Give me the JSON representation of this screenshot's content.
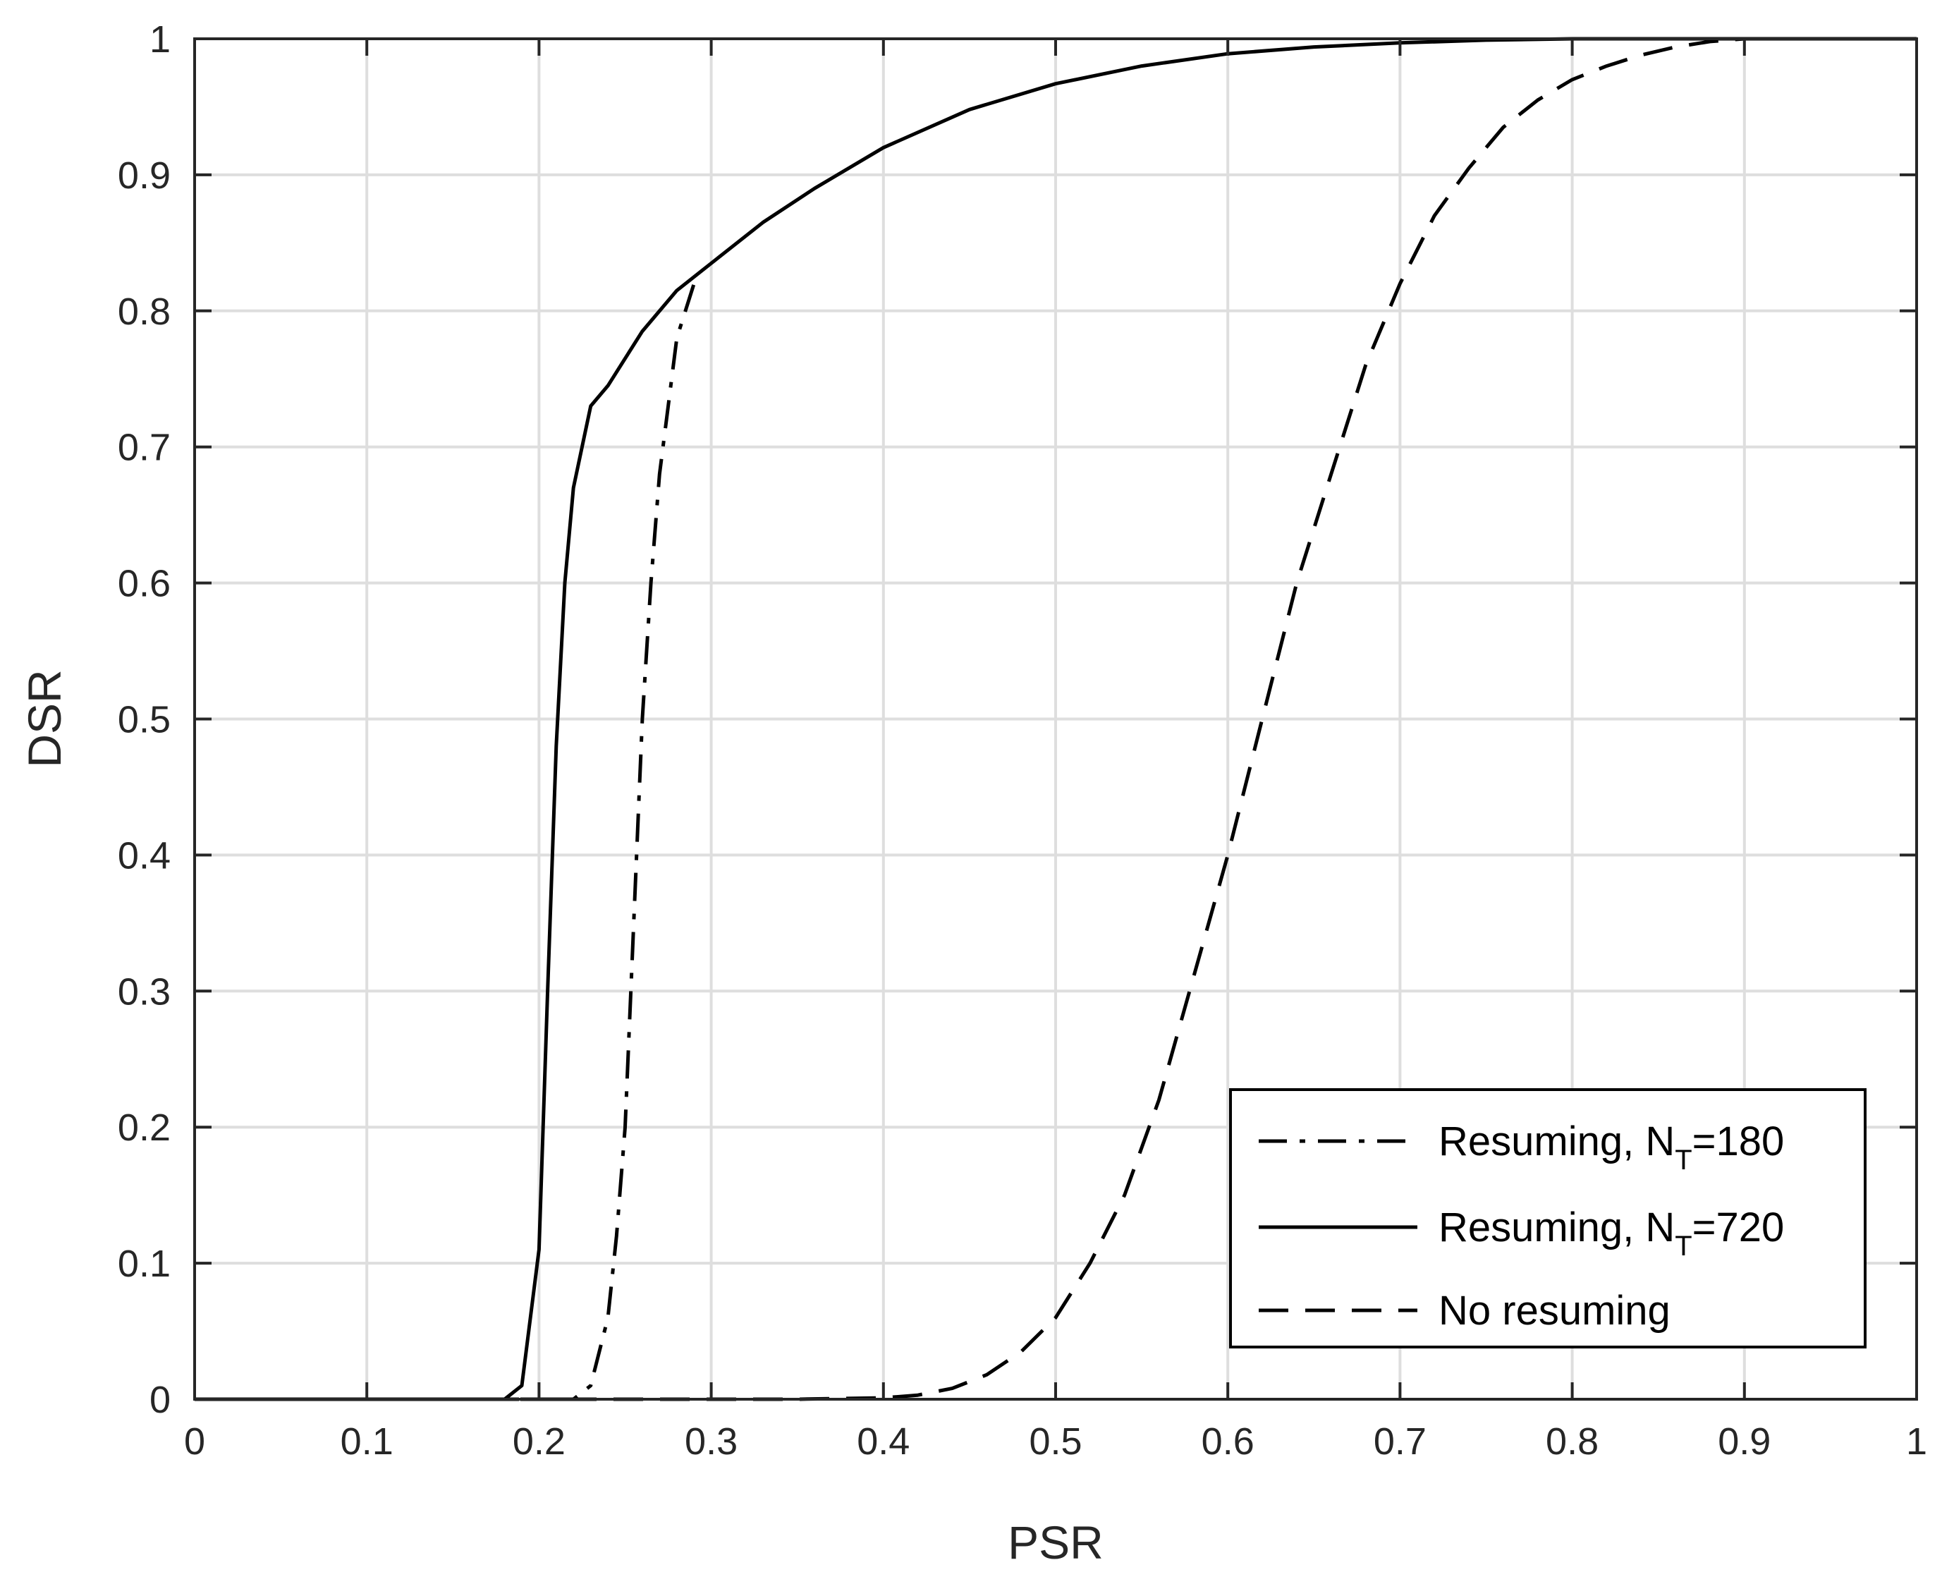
{
  "chart_data": {
    "type": "line",
    "xlabel": "PSR",
    "ylabel": "DSR",
    "xlim": [
      0,
      1
    ],
    "ylim": [
      0,
      1
    ],
    "xticks": [
      "0",
      "0.1",
      "0.2",
      "0.3",
      "0.4",
      "0.5",
      "0.6",
      "0.7",
      "0.8",
      "0.9",
      "1"
    ],
    "yticks": [
      "0",
      "0.1",
      "0.2",
      "0.3",
      "0.4",
      "0.5",
      "0.6",
      "0.7",
      "0.8",
      "0.9",
      "1"
    ],
    "grid": true,
    "legend_position": "bottom-right",
    "series": [
      {
        "name": "Resuming, N",
        "name_sub": "T",
        "name_suffix": "=180",
        "style": "dash-dot",
        "color": "#000000",
        "x": [
          0,
          0.1,
          0.2,
          0.22,
          0.23,
          0.24,
          0.245,
          0.25,
          0.255,
          0.26,
          0.265,
          0.27,
          0.275,
          0.28,
          0.29
        ],
        "y": [
          0,
          0,
          0,
          0,
          0.01,
          0.06,
          0.12,
          0.2,
          0.35,
          0.5,
          0.6,
          0.68,
          0.73,
          0.78,
          0.82
        ]
      },
      {
        "name": "Resuming, N",
        "name_sub": "T",
        "name_suffix": "=720",
        "style": "solid",
        "color": "#000000",
        "x": [
          0,
          0.1,
          0.18,
          0.19,
          0.2,
          0.205,
          0.21,
          0.215,
          0.22,
          0.23,
          0.24,
          0.26,
          0.28,
          0.3,
          0.33,
          0.36,
          0.4,
          0.45,
          0.5,
          0.55,
          0.6,
          0.65,
          0.7,
          0.75,
          0.8,
          0.9,
          1.0
        ],
        "y": [
          0,
          0,
          0,
          0.01,
          0.11,
          0.3,
          0.48,
          0.6,
          0.67,
          0.73,
          0.745,
          0.785,
          0.815,
          0.835,
          0.865,
          0.89,
          0.92,
          0.948,
          0.967,
          0.98,
          0.989,
          0.994,
          0.997,
          0.999,
          1.0,
          1.0,
          1.0
        ]
      },
      {
        "name": "No resuming",
        "style": "dashed",
        "color": "#000000",
        "x": [
          0,
          0.1,
          0.2,
          0.3,
          0.35,
          0.4,
          0.42,
          0.44,
          0.46,
          0.48,
          0.5,
          0.52,
          0.54,
          0.56,
          0.58,
          0.6,
          0.62,
          0.64,
          0.66,
          0.68,
          0.7,
          0.72,
          0.74,
          0.76,
          0.78,
          0.8,
          0.82,
          0.84,
          0.86,
          0.88,
          0.9,
          0.95,
          1.0
        ],
        "y": [
          0,
          0,
          0,
          0,
          0,
          0.001,
          0.003,
          0.008,
          0.018,
          0.035,
          0.06,
          0.1,
          0.15,
          0.22,
          0.31,
          0.4,
          0.5,
          0.6,
          0.68,
          0.76,
          0.82,
          0.87,
          0.905,
          0.935,
          0.955,
          0.97,
          0.98,
          0.988,
          0.994,
          0.998,
          1.0,
          1.0,
          1.0
        ]
      }
    ]
  }
}
